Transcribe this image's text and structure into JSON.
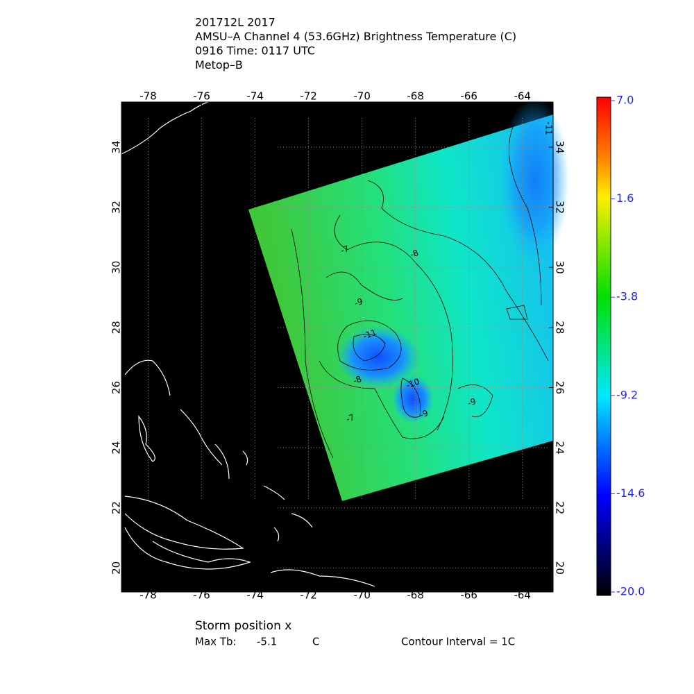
{
  "header": {
    "lines": [
      "201712L 2017",
      "AMSU–A Channel 4 (53.6GHz) Brightness Temperature (C)",
      "0916 Time: 0117 UTC",
      "Metop–B"
    ]
  },
  "map": {
    "lon_range": [
      -79,
      -62.85
    ],
    "lat_range": [
      19.2,
      35.5
    ],
    "lon_ticks": [
      -78,
      -76,
      -74,
      -72,
      -70,
      -68,
      -66,
      -64
    ],
    "lat_ticks": [
      20,
      22,
      24,
      26,
      28,
      30,
      32,
      34
    ],
    "contour_labels": [
      -7,
      -8,
      -9,
      -11,
      -10,
      -8,
      -9,
      -9,
      -7,
      -11
    ]
  },
  "colorbar": {
    "range": [
      -20,
      7
    ],
    "ticks": [
      {
        "value": 7,
        "label": "7.0"
      },
      1.6,
      -3.8,
      -9.2,
      -14.6,
      {
        "value": -20,
        "label": "-20.0"
      }
    ]
  },
  "footer": {
    "storm_position": "Storm position x",
    "max_tb_label": "Max Tb:",
    "max_tb_value": -5.1,
    "max_tb_unit": "C",
    "contour_interval": "Contour Interval = 1C"
  }
}
